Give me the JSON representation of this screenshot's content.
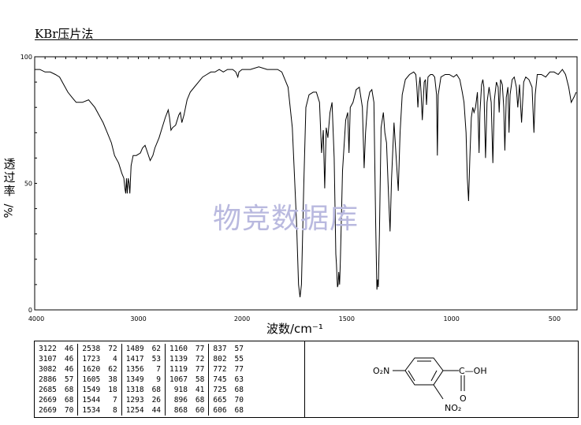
{
  "method_title": "KBr压片法",
  "watermark": "物竞数据库",
  "chart_data": {
    "type": "line",
    "title": "",
    "xlabel": "波数/cm⁻¹",
    "ylabel_chars": [
      "透",
      "过",
      "率"
    ],
    "ylabel_unit": "%/",
    "xlim": [
      4000,
      400
    ],
    "ylim": [
      0,
      100
    ],
    "x_ticks": [
      4000,
      3000,
      2000,
      1500,
      1000,
      500
    ],
    "y_ticks": [
      0,
      50,
      100
    ],
    "grid": false,
    "series": [
      {
        "values_xy": [
          [
            4000,
            95
          ],
          [
            3950,
            95
          ],
          [
            3900,
            94
          ],
          [
            3850,
            94
          ],
          [
            3800,
            93
          ],
          [
            3760,
            92
          ],
          [
            3720,
            89
          ],
          [
            3680,
            86
          ],
          [
            3640,
            84
          ],
          [
            3600,
            82
          ],
          [
            3540,
            82
          ],
          [
            3480,
            83
          ],
          [
            3420,
            80
          ],
          [
            3380,
            77
          ],
          [
            3340,
            74
          ],
          [
            3300,
            70
          ],
          [
            3260,
            66
          ],
          [
            3230,
            61
          ],
          [
            3190,
            58
          ],
          [
            3160,
            54
          ],
          [
            3140,
            52
          ],
          [
            3130,
            48
          ],
          [
            3122,
            46
          ],
          [
            3115,
            52
          ],
          [
            3107,
            46
          ],
          [
            3098,
            52
          ],
          [
            3090,
            50
          ],
          [
            3082,
            46
          ],
          [
            3070,
            57
          ],
          [
            3050,
            61
          ],
          [
            3020,
            61
          ],
          [
            2980,
            62
          ],
          [
            2960,
            64
          ],
          [
            2935,
            65
          ],
          [
            2910,
            62
          ],
          [
            2886,
            59
          ],
          [
            2860,
            61
          ],
          [
            2840,
            64
          ],
          [
            2800,
            68
          ],
          [
            2770,
            72
          ],
          [
            2740,
            76
          ],
          [
            2712,
            79
          ],
          [
            2700,
            76
          ],
          [
            2685,
            71
          ],
          [
            2670,
            72
          ],
          [
            2640,
            73
          ],
          [
            2610,
            77
          ],
          [
            2595,
            78
          ],
          [
            2580,
            74
          ],
          [
            2560,
            77
          ],
          [
            2530,
            83
          ],
          [
            2500,
            86
          ],
          [
            2460,
            88
          ],
          [
            2420,
            90
          ],
          [
            2380,
            92
          ],
          [
            2340,
            93
          ],
          [
            2300,
            94
          ],
          [
            2260,
            94
          ],
          [
            2220,
            95
          ],
          [
            2180,
            94
          ],
          [
            2140,
            95
          ],
          [
            2090,
            95
          ],
          [
            2060,
            94
          ],
          [
            2040,
            92
          ],
          [
            2030,
            94
          ],
          [
            2000,
            95
          ],
          [
            1960,
            95
          ],
          [
            1920,
            96
          ],
          [
            1880,
            95
          ],
          [
            1860,
            95
          ],
          [
            1830,
            95
          ],
          [
            1810,
            94
          ],
          [
            1780,
            88
          ],
          [
            1760,
            72
          ],
          [
            1740,
            35
          ],
          [
            1730,
            10
          ],
          [
            1723,
            5
          ],
          [
            1716,
            10
          ],
          [
            1705,
            50
          ],
          [
            1695,
            80
          ],
          [
            1680,
            85
          ],
          [
            1660,
            86
          ],
          [
            1645,
            86
          ],
          [
            1630,
            82
          ],
          [
            1620,
            62
          ],
          [
            1612,
            71
          ],
          [
            1605,
            48
          ],
          [
            1598,
            72
          ],
          [
            1590,
            68
          ],
          [
            1580,
            78
          ],
          [
            1570,
            82
          ],
          [
            1560,
            60
          ],
          [
            1552,
            22
          ],
          [
            1549,
            18
          ],
          [
            1546,
            12
          ],
          [
            1544,
            9
          ],
          [
            1541,
            10
          ],
          [
            1538,
            15
          ],
          [
            1534,
            10
          ],
          [
            1530,
            20
          ],
          [
            1520,
            55
          ],
          [
            1505,
            75
          ],
          [
            1495,
            78
          ],
          [
            1489,
            62
          ],
          [
            1483,
            80
          ],
          [
            1470,
            82
          ],
          [
            1455,
            87
          ],
          [
            1440,
            88
          ],
          [
            1425,
            80
          ],
          [
            1417,
            56
          ],
          [
            1410,
            70
          ],
          [
            1400,
            82
          ],
          [
            1390,
            86
          ],
          [
            1380,
            87
          ],
          [
            1370,
            82
          ],
          [
            1362,
            35
          ],
          [
            1356,
            8
          ],
          [
            1352,
            12
          ],
          [
            1349,
            9
          ],
          [
            1344,
            30
          ],
          [
            1336,
            72
          ],
          [
            1325,
            78
          ],
          [
            1318,
            70
          ],
          [
            1310,
            66
          ],
          [
            1300,
            45
          ],
          [
            1293,
            31
          ],
          [
            1286,
            52
          ],
          [
            1274,
            74
          ],
          [
            1262,
            58
          ],
          [
            1254,
            47
          ],
          [
            1245,
            70
          ],
          [
            1235,
            85
          ],
          [
            1220,
            91
          ],
          [
            1200,
            93
          ],
          [
            1180,
            94
          ],
          [
            1170,
            93
          ],
          [
            1165,
            88
          ],
          [
            1160,
            80
          ],
          [
            1155,
            88
          ],
          [
            1150,
            92
          ],
          [
            1145,
            86
          ],
          [
            1139,
            75
          ],
          [
            1130,
            90
          ],
          [
            1124,
            91
          ],
          [
            1119,
            81
          ],
          [
            1112,
            92
          ],
          [
            1100,
            93
          ],
          [
            1090,
            93
          ],
          [
            1080,
            92
          ],
          [
            1071,
            85
          ],
          [
            1067,
            61
          ],
          [
            1063,
            85
          ],
          [
            1050,
            92
          ],
          [
            1030,
            93
          ],
          [
            1010,
            93
          ],
          [
            990,
            92
          ],
          [
            975,
            93
          ],
          [
            960,
            91
          ],
          [
            948,
            86
          ],
          [
            940,
            82
          ],
          [
            930,
            70
          ],
          [
            924,
            52
          ],
          [
            918,
            43
          ],
          [
            912,
            60
          ],
          [
            905,
            76
          ],
          [
            898,
            80
          ],
          [
            892,
            78
          ],
          [
            885,
            80
          ],
          [
            876,
            86
          ],
          [
            872,
            75
          ],
          [
            868,
            62
          ],
          [
            864,
            78
          ],
          [
            856,
            89
          ],
          [
            850,
            91
          ],
          [
            845,
            88
          ],
          [
            837,
            60
          ],
          [
            830,
            82
          ],
          [
            820,
            88
          ],
          [
            810,
            82
          ],
          [
            802,
            58
          ],
          [
            795,
            83
          ],
          [
            785,
            90
          ],
          [
            777,
            88
          ],
          [
            772,
            78
          ],
          [
            765,
            91
          ],
          [
            757,
            89
          ],
          [
            750,
            80
          ],
          [
            745,
            63
          ],
          [
            738,
            84
          ],
          [
            730,
            88
          ],
          [
            725,
            70
          ],
          [
            720,
            85
          ],
          [
            710,
            91
          ],
          [
            700,
            92
          ],
          [
            690,
            88
          ],
          [
            683,
            80
          ],
          [
            675,
            89
          ],
          [
            665,
            74
          ],
          [
            655,
            90
          ],
          [
            645,
            92
          ],
          [
            630,
            91
          ],
          [
            615,
            88
          ],
          [
            606,
            70
          ],
          [
            600,
            85
          ],
          [
            590,
            93
          ],
          [
            570,
            93
          ],
          [
            550,
            92
          ],
          [
            530,
            94
          ],
          [
            510,
            94
          ],
          [
            490,
            93
          ],
          [
            470,
            95
          ],
          [
            455,
            93
          ],
          [
            440,
            88
          ],
          [
            428,
            82
          ],
          [
            415,
            84
          ],
          [
            404,
            86
          ]
        ]
      }
    ]
  },
  "peak_table": {
    "columns": [
      [
        [
          "3122",
          "46"
        ],
        [
          "3107",
          "46"
        ],
        [
          "3082",
          "46"
        ],
        [
          "2886",
          "57"
        ],
        [
          "2685",
          "68"
        ],
        [
          "2669",
          "68"
        ],
        [
          "2669",
          "70"
        ]
      ],
      [
        [
          "2538",
          "72"
        ],
        [
          "1723",
          "4"
        ],
        [
          "1620",
          "62"
        ],
        [
          "1605",
          "38"
        ],
        [
          "1549",
          "18"
        ],
        [
          "1544",
          "7"
        ],
        [
          "1534",
          "8"
        ]
      ],
      [
        [
          "1489",
          "62"
        ],
        [
          "1417",
          "53"
        ],
        [
          "1356",
          "7"
        ],
        [
          "1349",
          "9"
        ],
        [
          "1318",
          "68"
        ],
        [
          "1293",
          "26"
        ],
        [
          "1254",
          "44"
        ]
      ],
      [
        [
          "1160",
          "77"
        ],
        [
          "1139",
          "72"
        ],
        [
          "1119",
          "77"
        ],
        [
          "1067",
          "58"
        ],
        [
          "918",
          "41"
        ],
        [
          "896",
          "68"
        ],
        [
          "868",
          "60"
        ]
      ],
      [
        [
          "837",
          "57"
        ],
        [
          "802",
          "55"
        ],
        [
          "772",
          "77"
        ],
        [
          "745",
          "63"
        ],
        [
          "725",
          "68"
        ],
        [
          "665",
          "70"
        ],
        [
          "606",
          "68"
        ]
      ]
    ]
  },
  "structure": {
    "left_group": "O₂N",
    "acid_group": "C—OH",
    "carbonyl_oxygen": "O",
    "ortho_group": "NO₂"
  }
}
